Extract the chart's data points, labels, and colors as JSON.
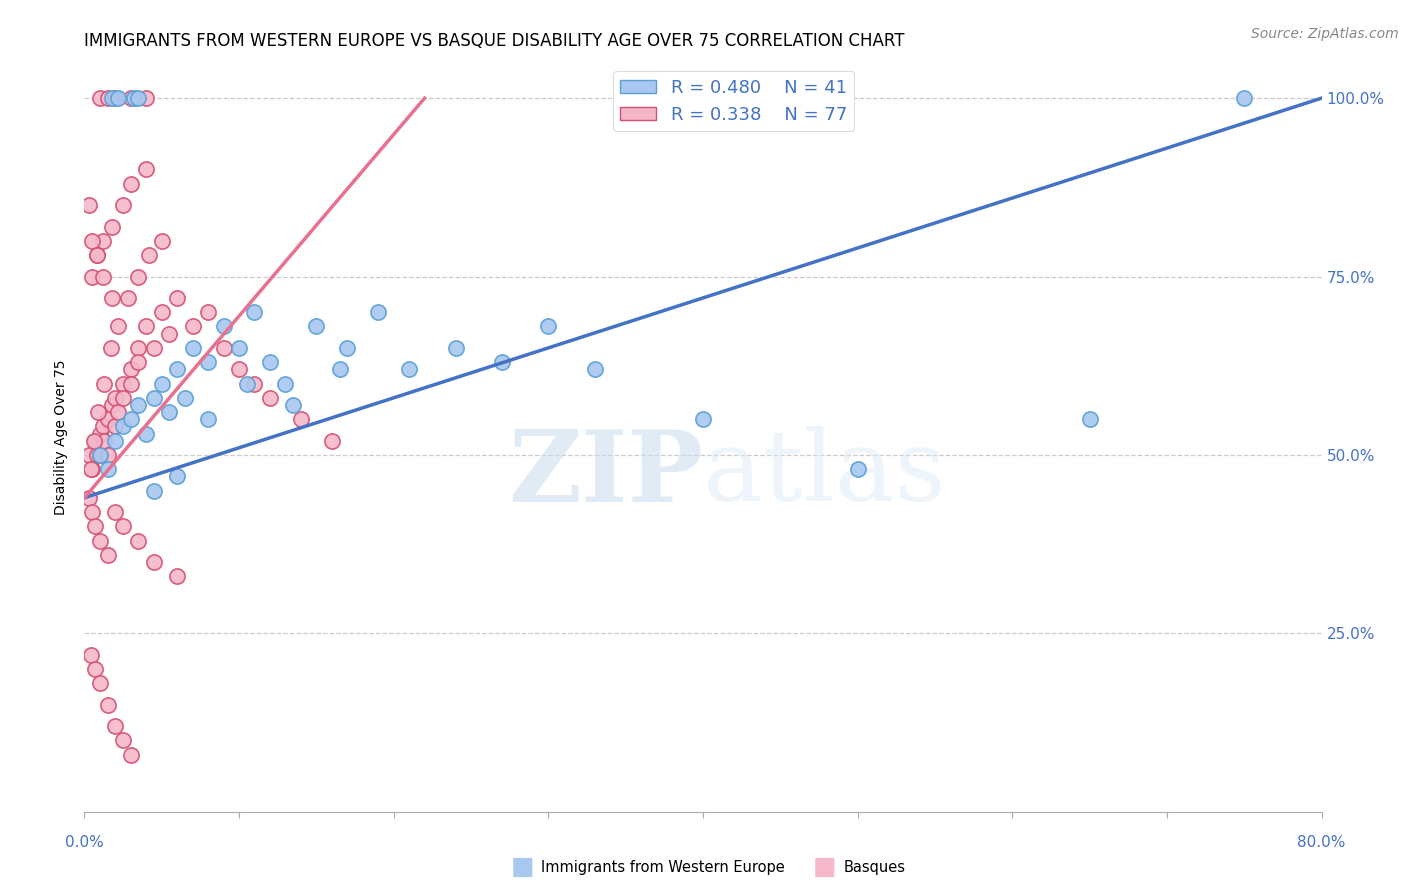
{
  "title": "IMMIGRANTS FROM WESTERN EUROPE VS BASQUE DISABILITY AGE OVER 75 CORRELATION CHART",
  "source": "Source: ZipAtlas.com",
  "ylabel": "Disability Age Over 75",
  "watermark": "ZIPatlas",
  "legend_blue_r": "R = 0.480",
  "legend_blue_n": "N = 41",
  "legend_pink_r": "R = 0.338",
  "legend_pink_n": "N = 77",
  "blue_color": "#A8C8F0",
  "pink_color": "#F5B8CB",
  "blue_line_color": "#4472C4",
  "pink_line_color": "#E87090",
  "blue_edge_color": "#5A9FD4",
  "pink_edge_color": "#D45070",
  "blue_scatter_x": [
    1.0,
    1.5,
    2.0,
    2.5,
    3.0,
    3.5,
    4.0,
    4.5,
    5.0,
    5.5,
    6.0,
    6.5,
    7.0,
    8.0,
    9.0,
    10.0,
    11.0,
    12.0,
    13.0,
    15.0,
    17.0,
    19.0,
    21.0,
    24.0,
    27.0,
    30.0,
    33.0,
    40.0,
    50.0,
    65.0,
    75.0,
    3.2,
    3.5,
    1.8,
    2.2,
    4.5,
    6.0,
    8.0,
    10.5,
    13.5,
    16.5
  ],
  "blue_scatter_y": [
    50,
    48,
    52,
    54,
    55,
    57,
    53,
    58,
    60,
    56,
    62,
    58,
    65,
    63,
    68,
    65,
    70,
    63,
    60,
    68,
    65,
    70,
    62,
    65,
    63,
    68,
    62,
    55,
    48,
    55,
    100,
    100,
    100,
    100,
    100,
    45,
    47,
    55,
    60,
    57,
    62
  ],
  "pink_scatter_x": [
    0.3,
    0.5,
    0.7,
    0.8,
    1.0,
    1.0,
    1.2,
    1.3,
    1.5,
    1.5,
    1.8,
    2.0,
    2.0,
    2.2,
    2.5,
    2.5,
    3.0,
    3.0,
    3.5,
    3.5,
    4.0,
    4.5,
    5.0,
    5.5,
    6.0,
    7.0,
    8.0,
    9.0,
    10.0,
    11.0,
    12.0,
    14.0,
    16.0,
    0.5,
    0.8,
    1.2,
    1.8,
    2.5,
    3.0,
    4.0,
    0.3,
    0.5,
    0.7,
    1.0,
    1.5,
    2.0,
    2.5,
    3.5,
    4.5,
    6.0,
    0.3,
    0.5,
    0.8,
    1.2,
    1.8,
    0.4,
    0.6,
    0.9,
    1.3,
    1.7,
    2.2,
    2.8,
    3.5,
    4.2,
    5.0,
    1.0,
    1.5,
    2.0,
    3.0,
    4.0,
    0.4,
    0.7,
    1.0,
    1.5,
    2.0,
    2.5,
    3.0
  ],
  "pink_scatter_y": [
    50,
    48,
    52,
    50,
    50,
    53,
    54,
    52,
    55,
    50,
    57,
    54,
    58,
    56,
    60,
    58,
    62,
    60,
    65,
    63,
    68,
    65,
    70,
    67,
    72,
    68,
    70,
    65,
    62,
    60,
    58,
    55,
    52,
    75,
    78,
    80,
    82,
    85,
    88,
    90,
    44,
    42,
    40,
    38,
    36,
    42,
    40,
    38,
    35,
    33,
    85,
    80,
    78,
    75,
    72,
    48,
    52,
    56,
    60,
    65,
    68,
    72,
    75,
    78,
    80,
    100,
    100,
    100,
    100,
    100,
    22,
    20,
    18,
    15,
    12,
    10,
    8
  ],
  "blue_line_x": [
    0,
    80
  ],
  "blue_line_y": [
    44,
    100
  ],
  "pink_line_x": [
    0,
    22
  ],
  "pink_line_y": [
    44,
    100
  ],
  "xmin": 0,
  "xmax": 80,
  "ymin": 0,
  "ymax": 105,
  "right_yticks": [
    25,
    50,
    75,
    100
  ],
  "right_ytick_labels": [
    "25.0%",
    "50.0%",
    "75.0%",
    "100.0%"
  ],
  "title_fontsize": 12,
  "axis_label_fontsize": 10,
  "tick_fontsize": 11,
  "legend_fontsize": 13,
  "source_fontsize": 10
}
